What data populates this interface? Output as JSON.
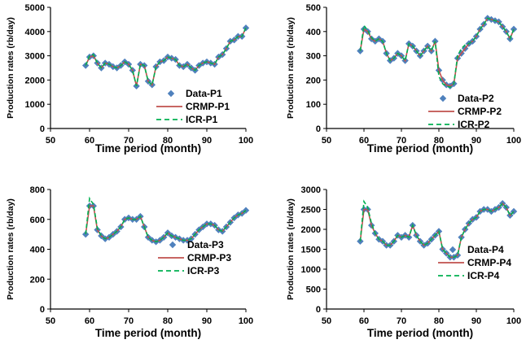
{
  "chart_data": [
    {
      "type": "line",
      "ylabel": "Production rates (rb/day)",
      "xlabel": "Time period (month)",
      "xlim": [
        50,
        100
      ],
      "ylim": [
        0,
        5000
      ],
      "xticks": [
        50,
        60,
        70,
        80,
        90,
        100
      ],
      "yticks": [
        0,
        1000,
        2000,
        3000,
        4000,
        5000
      ],
      "legend_position": "center-right",
      "x": [
        59,
        60,
        61,
        62,
        63,
        64,
        65,
        66,
        67,
        68,
        69,
        70,
        71,
        72,
        73,
        74,
        75,
        76,
        77,
        78,
        79,
        80,
        81,
        82,
        83,
        84,
        85,
        86,
        87,
        88,
        89,
        90,
        91,
        92,
        93,
        94,
        95,
        96,
        97,
        98,
        99,
        100
      ],
      "series": [
        {
          "name": "Data-P1",
          "kind": "marker",
          "color": "#4f81bd",
          "values": [
            2600,
            2950,
            3000,
            2700,
            2500,
            2700,
            2650,
            2550,
            2500,
            2600,
            2750,
            2650,
            2400,
            1750,
            2650,
            2600,
            1950,
            1800,
            2550,
            2750,
            2800,
            2950,
            2900,
            2850,
            2600,
            2550,
            2650,
            2500,
            2400,
            2600,
            2700,
            2750,
            2700,
            2650,
            2950,
            3050,
            3300,
            3600,
            3650,
            3800,
            3800,
            4150
          ]
        },
        {
          "name": "CRMP-P1",
          "kind": "solid",
          "color": "#c0504d",
          "values": [
            2600,
            2950,
            3000,
            2700,
            2500,
            2700,
            2650,
            2550,
            2500,
            2600,
            2750,
            2650,
            2400,
            1750,
            2650,
            2600,
            1950,
            1800,
            2550,
            2750,
            2800,
            2950,
            2900,
            2850,
            2600,
            2550,
            2650,
            2500,
            2400,
            2600,
            2700,
            2750,
            2700,
            2650,
            2950,
            3050,
            3300,
            3600,
            3650,
            3800,
            3800,
            4150
          ]
        },
        {
          "name": "ICR-P1",
          "kind": "dashed",
          "color": "#00b050",
          "values": [
            2600,
            3000,
            3050,
            2700,
            2500,
            2700,
            2650,
            2550,
            2500,
            2600,
            2750,
            2650,
            2400,
            1750,
            2650,
            2600,
            1950,
            1800,
            2550,
            2750,
            2800,
            2950,
            2900,
            2850,
            2600,
            2550,
            2650,
            2500,
            2400,
            2600,
            2700,
            2750,
            2700,
            2650,
            2950,
            3050,
            3300,
            3600,
            3650,
            3800,
            3800,
            4150
          ]
        }
      ]
    },
    {
      "type": "line",
      "ylabel": "Production rates (rb/day)",
      "xlabel": "Time period (month)",
      "xlim": [
        50,
        100
      ],
      "ylim": [
        0,
        500
      ],
      "xticks": [
        50,
        60,
        70,
        80,
        90,
        100
      ],
      "yticks": [
        0,
        100,
        200,
        300,
        400,
        500
      ],
      "legend_position": "center-right",
      "x": [
        59,
        60,
        61,
        62,
        63,
        64,
        65,
        66,
        67,
        68,
        69,
        70,
        71,
        72,
        73,
        74,
        75,
        76,
        77,
        78,
        79,
        80,
        81,
        82,
        83,
        84,
        85,
        86,
        87,
        88,
        89,
        90,
        91,
        92,
        93,
        94,
        95,
        96,
        97,
        98,
        99,
        100
      ],
      "series": [
        {
          "name": "Data-P2",
          "kind": "marker",
          "color": "#4f81bd",
          "values": [
            320,
            410,
            400,
            370,
            360,
            370,
            360,
            310,
            280,
            290,
            310,
            300,
            280,
            350,
            340,
            320,
            300,
            320,
            340,
            320,
            360,
            240,
            200,
            180,
            175,
            185,
            290,
            310,
            330,
            350,
            360,
            380,
            410,
            430,
            455,
            450,
            445,
            440,
            420,
            400,
            370,
            410
          ]
        },
        {
          "name": "CRMP-P2",
          "kind": "solid",
          "color": "#c0504d",
          "values": [
            320,
            410,
            400,
            370,
            360,
            370,
            360,
            310,
            280,
            290,
            310,
            300,
            280,
            350,
            340,
            320,
            300,
            320,
            340,
            320,
            360,
            240,
            200,
            180,
            175,
            185,
            290,
            310,
            330,
            350,
            360,
            380,
            410,
            430,
            455,
            450,
            445,
            440,
            420,
            400,
            370,
            410
          ]
        },
        {
          "name": "ICR-P2",
          "kind": "dashed",
          "color": "#00b050",
          "values": [
            320,
            425,
            405,
            375,
            360,
            370,
            360,
            310,
            280,
            290,
            310,
            300,
            280,
            350,
            340,
            320,
            300,
            320,
            340,
            320,
            360,
            215,
            185,
            175,
            170,
            185,
            300,
            330,
            345,
            350,
            360,
            380,
            410,
            430,
            455,
            450,
            445,
            440,
            420,
            400,
            370,
            410
          ]
        }
      ]
    },
    {
      "type": "line",
      "ylabel": "Production rates (rb/day)",
      "xlabel": "Time period (month)",
      "xlim": [
        50,
        100
      ],
      "ylim": [
        0,
        800
      ],
      "xticks": [
        50,
        60,
        70,
        80,
        90,
        100
      ],
      "yticks": [
        0,
        200,
        400,
        600,
        800
      ],
      "legend_position": "center-right",
      "x": [
        59,
        60,
        61,
        62,
        63,
        64,
        65,
        66,
        67,
        68,
        69,
        70,
        71,
        72,
        73,
        74,
        75,
        76,
        77,
        78,
        79,
        80,
        81,
        82,
        83,
        84,
        85,
        86,
        87,
        88,
        89,
        90,
        91,
        92,
        93,
        94,
        95,
        96,
        97,
        98,
        99,
        100
      ],
      "series": [
        {
          "name": "Data-P3",
          "kind": "marker",
          "color": "#4f81bd",
          "values": [
            500,
            690,
            690,
            530,
            490,
            470,
            480,
            500,
            520,
            550,
            600,
            610,
            600,
            600,
            620,
            550,
            480,
            460,
            450,
            460,
            480,
            510,
            490,
            480,
            470,
            460,
            460,
            470,
            500,
            530,
            550,
            570,
            570,
            560,
            530,
            520,
            550,
            580,
            610,
            630,
            640,
            660
          ]
        },
        {
          "name": "CRMP-P3",
          "kind": "solid",
          "color": "#c0504d",
          "values": [
            500,
            690,
            690,
            530,
            490,
            470,
            480,
            500,
            520,
            550,
            600,
            610,
            600,
            600,
            620,
            550,
            480,
            460,
            450,
            460,
            480,
            510,
            490,
            480,
            470,
            460,
            460,
            470,
            500,
            530,
            550,
            570,
            570,
            560,
            530,
            520,
            550,
            580,
            610,
            630,
            640,
            660
          ]
        },
        {
          "name": "ICR-P3",
          "kind": "dashed",
          "color": "#00b050",
          "values": [
            500,
            740,
            700,
            540,
            490,
            470,
            480,
            500,
            520,
            550,
            600,
            610,
            600,
            600,
            620,
            550,
            480,
            460,
            450,
            460,
            480,
            510,
            490,
            480,
            470,
            460,
            460,
            470,
            500,
            530,
            550,
            570,
            570,
            560,
            530,
            520,
            550,
            580,
            610,
            630,
            640,
            660
          ]
        }
      ]
    },
    {
      "type": "line",
      "ylabel": "Production rates (rb/day)",
      "xlabel": "Time period (month)",
      "xlim": [
        50,
        100
      ],
      "ylim": [
        0,
        3000
      ],
      "xticks": [
        50,
        60,
        70,
        80,
        90,
        100
      ],
      "yticks": [
        0,
        500,
        1000,
        1500,
        2000,
        2500,
        3000
      ],
      "legend_position": "center-right",
      "x": [
        59,
        60,
        61,
        62,
        63,
        64,
        65,
        66,
        67,
        68,
        69,
        70,
        71,
        72,
        73,
        74,
        75,
        76,
        77,
        78,
        79,
        80,
        81,
        82,
        83,
        84,
        85,
        86,
        87,
        88,
        89,
        90,
        91,
        92,
        93,
        94,
        95,
        96,
        97,
        98,
        99,
        100
      ],
      "series": [
        {
          "name": "Data-P4",
          "kind": "marker",
          "color": "#4f81bd",
          "values": [
            1700,
            2500,
            2500,
            2100,
            1900,
            1750,
            1700,
            1600,
            1600,
            1700,
            1850,
            1800,
            1850,
            1800,
            2100,
            1850,
            1700,
            1600,
            1650,
            1750,
            1850,
            1950,
            1500,
            1400,
            1300,
            1300,
            1350,
            1800,
            2000,
            2150,
            2250,
            2300,
            2450,
            2500,
            2500,
            2450,
            2500,
            2550,
            2650,
            2550,
            2350,
            2450
          ]
        },
        {
          "name": "CRMP-P4",
          "kind": "solid",
          "color": "#c0504d",
          "values": [
            1700,
            2500,
            2500,
            2100,
            1900,
            1750,
            1700,
            1600,
            1600,
            1700,
            1850,
            1800,
            1850,
            1800,
            2100,
            1850,
            1700,
            1600,
            1650,
            1750,
            1850,
            1950,
            1500,
            1400,
            1300,
            1300,
            1350,
            1800,
            2000,
            2150,
            2250,
            2300,
            2450,
            2500,
            2500,
            2450,
            2500,
            2550,
            2650,
            2550,
            2350,
            2450
          ]
        },
        {
          "name": "ICR-P4",
          "kind": "dashed",
          "color": "#00b050",
          "values": [
            1700,
            2700,
            2550,
            2150,
            1900,
            1750,
            1700,
            1600,
            1600,
            1700,
            1850,
            1800,
            1850,
            1800,
            2100,
            1850,
            1700,
            1600,
            1650,
            1750,
            1850,
            1950,
            1500,
            1400,
            1300,
            1300,
            1350,
            1800,
            2000,
            2150,
            2250,
            2300,
            2450,
            2500,
            2500,
            2450,
            2500,
            2550,
            2650,
            2550,
            2350,
            2450
          ]
        }
      ]
    }
  ]
}
